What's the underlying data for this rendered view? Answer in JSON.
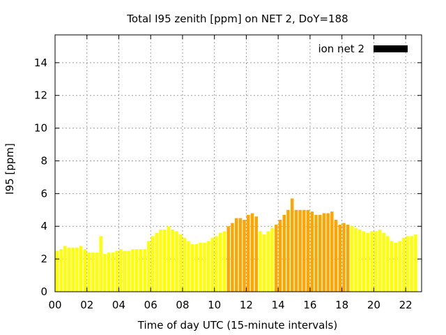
{
  "chart_data": {
    "type": "bar",
    "title": "Total I95 zenith [ppm] on NET 2, DoY=188",
    "xlabel": "Time of day UTC (15-minute intervals)",
    "ylabel": "I95 [ppm]",
    "xlim": [
      0,
      23
    ],
    "ylim": [
      0,
      15.7
    ],
    "x_ticks": [
      "00",
      "02",
      "04",
      "06",
      "08",
      "10",
      "12",
      "14",
      "16",
      "18",
      "20",
      "22"
    ],
    "x_tick_values": [
      0,
      2,
      4,
      6,
      8,
      10,
      12,
      14,
      16,
      18,
      20,
      22
    ],
    "y_ticks": [
      0,
      2,
      4,
      6,
      8,
      10,
      12,
      14
    ],
    "grid": true,
    "legend": {
      "label": "ion net 2",
      "color": "#000000",
      "placement": "top-right"
    },
    "colors": {
      "normal": "#ffff00",
      "elevated": "#ffa500"
    },
    "series": [
      {
        "values": [
          2.5,
          2.6,
          2.8,
          2.7,
          2.7,
          2.7,
          2.8,
          2.6,
          2.4,
          2.4,
          2.4,
          3.4,
          2.3,
          2.4,
          2.4,
          2.5,
          2.6,
          2.5,
          2.5,
          2.6,
          2.6,
          2.6,
          2.6,
          3.1,
          3.4,
          3.6,
          3.8,
          3.8,
          4.0,
          3.8,
          3.7,
          3.5,
          3.3,
          3.1,
          2.9,
          2.9,
          3.0,
          3.0,
          3.1,
          3.3,
          3.4,
          3.6,
          3.7,
          4.0,
          4.2,
          4.5,
          4.5,
          4.4,
          4.7,
          4.8,
          4.6,
          3.7,
          3.5,
          3.7,
          3.9,
          4.1,
          4.4,
          4.7,
          5.0,
          5.7,
          5.0,
          5.0,
          5.0,
          5.0,
          4.9,
          4.7,
          4.7,
          4.8,
          4.8,
          4.9,
          4.4,
          4.1,
          4.2,
          4.1,
          4.0,
          3.9,
          3.8,
          3.7,
          3.6,
          3.7,
          3.7,
          3.8,
          3.6,
          3.4,
          3.1,
          3.0,
          3.1,
          3.3,
          3.4,
          3.4,
          3.5
        ],
        "levels": [
          "normal",
          "normal",
          "normal",
          "normal",
          "normal",
          "normal",
          "normal",
          "normal",
          "normal",
          "normal",
          "normal",
          "normal",
          "normal",
          "normal",
          "normal",
          "normal",
          "normal",
          "normal",
          "normal",
          "normal",
          "normal",
          "normal",
          "normal",
          "normal",
          "normal",
          "normal",
          "normal",
          "normal",
          "normal",
          "normal",
          "normal",
          "normal",
          "normal",
          "normal",
          "normal",
          "normal",
          "normal",
          "normal",
          "normal",
          "normal",
          "normal",
          "normal",
          "normal",
          "elevated",
          "elevated",
          "elevated",
          "elevated",
          "elevated",
          "elevated",
          "elevated",
          "elevated",
          "normal",
          "normal",
          "normal",
          "normal",
          "elevated",
          "elevated",
          "elevated",
          "elevated",
          "elevated",
          "elevated",
          "elevated",
          "elevated",
          "elevated",
          "elevated",
          "elevated",
          "elevated",
          "elevated",
          "elevated",
          "elevated",
          "elevated",
          "elevated",
          "elevated",
          "elevated",
          "normal",
          "normal",
          "normal",
          "normal",
          "normal",
          "normal",
          "normal",
          "normal",
          "normal",
          "normal",
          "normal",
          "normal",
          "normal",
          "normal",
          "normal",
          "normal",
          "normal"
        ]
      }
    ]
  }
}
